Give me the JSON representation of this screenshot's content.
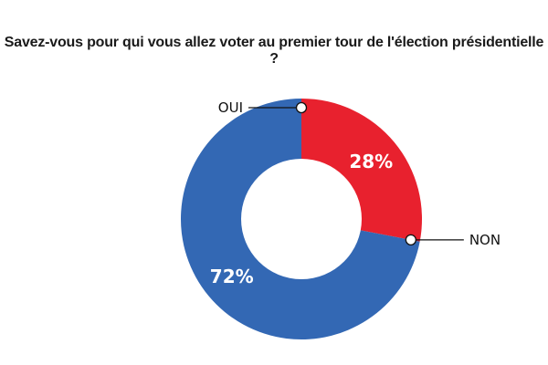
{
  "chart_data": {
    "type": "pie",
    "title": "Savez-vous pour qui vous allez voter au premier tour de l'élection présidentielle ?",
    "categories": [
      "NON",
      "OUI"
    ],
    "values": [
      28,
      72
    ],
    "data_labels": [
      "28%",
      "72%"
    ],
    "colors": [
      "#e8212e",
      "#3368b4"
    ],
    "donut": true,
    "legend": "none"
  }
}
